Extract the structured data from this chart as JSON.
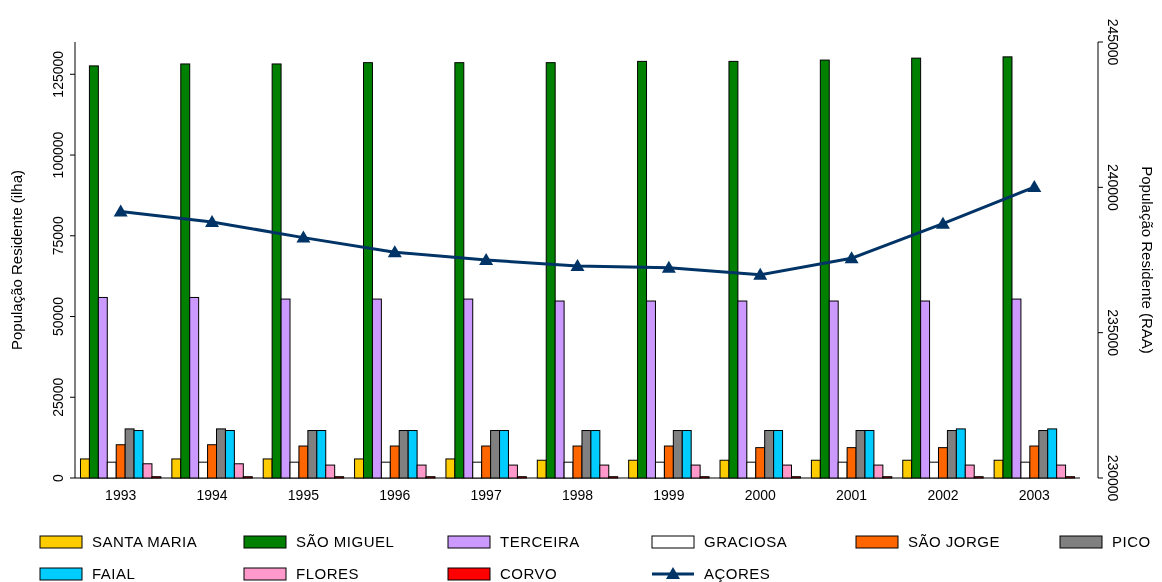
{
  "chart_data": {
    "type": "bar",
    "xlabel": null,
    "ylabel": "População Residente (ilha)",
    "y2label": "População Residente (RAA)",
    "categories": [
      "1993",
      "1994",
      "1995",
      "1996",
      "1997",
      "1998",
      "1999",
      "2000",
      "2001",
      "2002",
      "2003"
    ],
    "series": [
      {
        "name": "SANTA MARIA",
        "color": "#ffcc00",
        "values": [
          5900,
          5900,
          5900,
          5900,
          5900,
          5500,
          5500,
          5500,
          5500,
          5500,
          5500
        ]
      },
      {
        "name": "SÃO MIGUEL",
        "color": "#008000",
        "values": [
          127600,
          128200,
          128200,
          128600,
          128600,
          128600,
          129000,
          129000,
          129400,
          130000,
          130400
        ]
      },
      {
        "name": "TERCEIRA",
        "color": "#cc99ff",
        "values": [
          55900,
          55900,
          55400,
          55400,
          55400,
          54800,
          54800,
          54800,
          54800,
          54800,
          55400
        ]
      },
      {
        "name": "GRACIOSA",
        "color": "#ffffff",
        "values": [
          4900,
          4900,
          4900,
          4900,
          4900,
          4900,
          4900,
          4900,
          4900,
          4900,
          4900
        ]
      },
      {
        "name": "SÃO JORGE",
        "color": "#ff6600",
        "values": [
          10300,
          10300,
          9900,
          9900,
          9900,
          9900,
          9900,
          9400,
          9400,
          9400,
          9900
        ]
      },
      {
        "name": "PICO",
        "color": "#808080",
        "values": [
          15200,
          15200,
          14700,
          14700,
          14700,
          14700,
          14700,
          14700,
          14700,
          14700,
          14700
        ]
      },
      {
        "name": "FAIAL",
        "color": "#00ccff",
        "values": [
          14700,
          14700,
          14700,
          14700,
          14700,
          14700,
          14700,
          14700,
          14700,
          15200,
          15200
        ]
      },
      {
        "name": "FLORES",
        "color": "#ff99cc",
        "values": [
          4400,
          4400,
          4000,
          4000,
          4000,
          4000,
          4000,
          4000,
          4000,
          4000,
          4000
        ]
      },
      {
        "name": "CORVO",
        "color": "#ff0000",
        "values": [
          400,
          400,
          400,
          400,
          400,
          400,
          400,
          400,
          400,
          400,
          400
        ]
      },
      {
        "name": "AÇORES",
        "color": "#003366",
        "type": "line",
        "axis": "y2",
        "marker": "triangle",
        "values": [
          239170,
          238810,
          238270,
          237770,
          237500,
          237290,
          237230,
          236990,
          237560,
          238750,
          240010
        ]
      }
    ],
    "ylim": [
      0,
      135000
    ],
    "yticks": [
      0,
      25000,
      50000,
      75000,
      100000,
      125000
    ],
    "y2lim": [
      230000,
      245000
    ],
    "y2ticks": [
      230000,
      235000,
      240000,
      245000
    ],
    "grid": false,
    "legend": "bottom"
  }
}
